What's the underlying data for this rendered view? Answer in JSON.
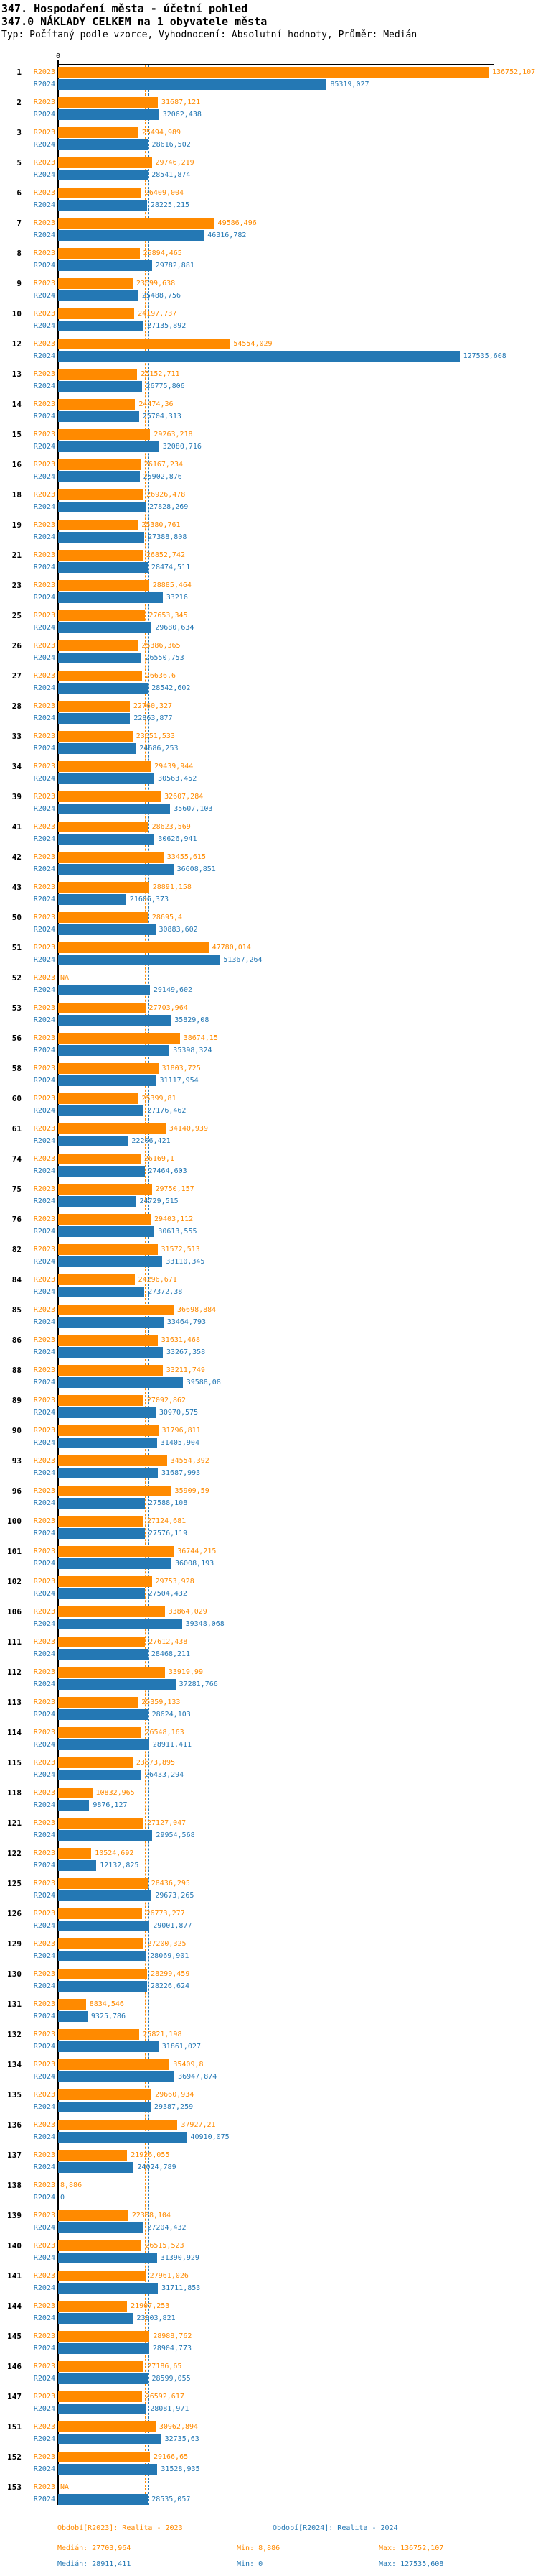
{
  "header": {
    "title_line1": "347. Hospodaření města - účetní pohled",
    "title_line2": "347.0 NÁKLADY CELKEM na 1 obyvatele města",
    "subtitle": "Typ: Počítaný podle vzorce, Vyhodnocení: Absolutní hodnoty, Průměr: Medián"
  },
  "chart_data": {
    "type": "bar",
    "orientation": "horizontal",
    "axis": {
      "zero_label": "0",
      "xlim": [
        0,
        140000
      ],
      "grid": false
    },
    "series_labels": [
      "R2023",
      "R2024"
    ],
    "colors": {
      "r2023": "#FF8A00",
      "r2024": "#2478B4"
    },
    "median_lines": {
      "r2023": 27703.964,
      "r2024": 28911.411
    },
    "na_label": "NA",
    "groups": [
      {
        "n": "1",
        "r2023": "136752,107",
        "r2024": "85319,027"
      },
      {
        "n": "2",
        "r2023": "31687,121",
        "r2024": "32062,438"
      },
      {
        "n": "3",
        "r2023": "25494,989",
        "r2024": "28616,502"
      },
      {
        "n": "5",
        "r2023": "29746,219",
        "r2024": "28541,874"
      },
      {
        "n": "6",
        "r2023": "26409,004",
        "r2024": "28225,215"
      },
      {
        "n": "7",
        "r2023": "49586,496",
        "r2024": "46316,782"
      },
      {
        "n": "8",
        "r2023": "25894,465",
        "r2024": "29782,881"
      },
      {
        "n": "9",
        "r2023": "23699,638",
        "r2024": "25488,756"
      },
      {
        "n": "10",
        "r2023": "24197,737",
        "r2024": "27135,892"
      },
      {
        "n": "12",
        "r2023": "54554,029",
        "r2024": "127535,608"
      },
      {
        "n": "13",
        "r2023": "25152,711",
        "r2024": "26775,806"
      },
      {
        "n": "14",
        "r2023": "24474,36",
        "r2024": "25704,313"
      },
      {
        "n": "15",
        "r2023": "29263,218",
        "r2024": "32080,716"
      },
      {
        "n": "16",
        "r2023": "26167,234",
        "r2024": "25902,876"
      },
      {
        "n": "18",
        "r2023": "26926,478",
        "r2024": "27828,269"
      },
      {
        "n": "19",
        "r2023": "25380,761",
        "r2024": "27388,808"
      },
      {
        "n": "21",
        "r2023": "26852,742",
        "r2024": "28474,511"
      },
      {
        "n": "23",
        "r2023": "28885,464",
        "r2024": "33216"
      },
      {
        "n": "25",
        "r2023": "27653,345",
        "r2024": "29680,634"
      },
      {
        "n": "26",
        "r2023": "25386,365",
        "r2024": "26550,753"
      },
      {
        "n": "27",
        "r2023": "26636,6",
        "r2024": "28542,602"
      },
      {
        "n": "28",
        "r2023": "22760,327",
        "r2024": "22863,877"
      },
      {
        "n": "33",
        "r2023": "23651,533",
        "r2024": "24686,253"
      },
      {
        "n": "34",
        "r2023": "29439,944",
        "r2024": "30563,452"
      },
      {
        "n": "39",
        "r2023": "32607,284",
        "r2024": "35607,103"
      },
      {
        "n": "41",
        "r2023": "28623,569",
        "r2024": "30626,941"
      },
      {
        "n": "42",
        "r2023": "33455,615",
        "r2024": "36608,851"
      },
      {
        "n": "43",
        "r2023": "28891,158",
        "r2024": "21606,373"
      },
      {
        "n": "50",
        "r2023": "28695,4",
        "r2024": "30883,602"
      },
      {
        "n": "51",
        "r2023": "47780,014",
        "r2024": "51367,264"
      },
      {
        "n": "52",
        "r2023": "NA",
        "r2024": "29149,602"
      },
      {
        "n": "53",
        "r2023": "27703,964",
        "r2024": "35829,08"
      },
      {
        "n": "56",
        "r2023": "38674,15",
        "r2024": "35398,324"
      },
      {
        "n": "58",
        "r2023": "31803,725",
        "r2024": "31117,954"
      },
      {
        "n": "60",
        "r2023": "25399,81",
        "r2024": "27176,462"
      },
      {
        "n": "61",
        "r2023": "34140,939",
        "r2024": "22206,421"
      },
      {
        "n": "74",
        "r2023": "26169,1",
        "r2024": "27464,603"
      },
      {
        "n": "75",
        "r2023": "29750,157",
        "r2024": "24729,515"
      },
      {
        "n": "76",
        "r2023": "29403,112",
        "r2024": "30613,555"
      },
      {
        "n": "82",
        "r2023": "31572,513",
        "r2024": "33110,345"
      },
      {
        "n": "84",
        "r2023": "24296,671",
        "r2024": "27372,38"
      },
      {
        "n": "85",
        "r2023": "36698,884",
        "r2024": "33464,793"
      },
      {
        "n": "86",
        "r2023": "31631,468",
        "r2024": "33267,358"
      },
      {
        "n": "88",
        "r2023": "33211,749",
        "r2024": "39588,08"
      },
      {
        "n": "89",
        "r2023": "27092,862",
        "r2024": "30970,575"
      },
      {
        "n": "90",
        "r2023": "31796,811",
        "r2024": "31405,904"
      },
      {
        "n": "93",
        "r2023": "34554,392",
        "r2024": "31687,993"
      },
      {
        "n": "96",
        "r2023": "35909,59",
        "r2024": "27588,108"
      },
      {
        "n": "100",
        "r2023": "27124,681",
        "r2024": "27576,119"
      },
      {
        "n": "101",
        "r2023": "36744,215",
        "r2024": "36008,193"
      },
      {
        "n": "102",
        "r2023": "29753,928",
        "r2024": "27504,432"
      },
      {
        "n": "106",
        "r2023": "33864,029",
        "r2024": "39348,068"
      },
      {
        "n": "111",
        "r2023": "27612,438",
        "r2024": "28468,211"
      },
      {
        "n": "112",
        "r2023": "33919,99",
        "r2024": "37281,766"
      },
      {
        "n": "113",
        "r2023": "25359,133",
        "r2024": "28624,103"
      },
      {
        "n": "114",
        "r2023": "26548,163",
        "r2024": "28911,411"
      },
      {
        "n": "115",
        "r2023": "23673,895",
        "r2024": "26433,294"
      },
      {
        "n": "118",
        "r2023": "10832,965",
        "r2024": "9876,127"
      },
      {
        "n": "121",
        "r2023": "27127,047",
        "r2024": "29954,568"
      },
      {
        "n": "122",
        "r2023": "10524,692",
        "r2024": "12132,825"
      },
      {
        "n": "125",
        "r2023": "28436,295",
        "r2024": "29673,265"
      },
      {
        "n": "126",
        "r2023": "26773,277",
        "r2024": "29001,877"
      },
      {
        "n": "129",
        "r2023": "27200,325",
        "r2024": "28069,901"
      },
      {
        "n": "130",
        "r2023": "28299,459",
        "r2024": "28226,624"
      },
      {
        "n": "131",
        "r2023": "8834,546",
        "r2024": "9325,786"
      },
      {
        "n": "132",
        "r2023": "25821,198",
        "r2024": "31861,027"
      },
      {
        "n": "134",
        "r2023": "35409,8",
        "r2024": "36947,874"
      },
      {
        "n": "135",
        "r2023": "29660,934",
        "r2024": "29387,259"
      },
      {
        "n": "136",
        "r2023": "37927,21",
        "r2024": "40910,075"
      },
      {
        "n": "137",
        "r2023": "21926,055",
        "r2024": "24024,789"
      },
      {
        "n": "138",
        "r2023": "8,886",
        "r2024": "0"
      },
      {
        "n": "139",
        "r2023": "22308,104",
        "r2024": "27204,432"
      },
      {
        "n": "140",
        "r2023": "26515,523",
        "r2024": "31390,929"
      },
      {
        "n": "141",
        "r2023": "27961,026",
        "r2024": "31711,853"
      },
      {
        "n": "144",
        "r2023": "21907,253",
        "r2024": "23803,821"
      },
      {
        "n": "145",
        "r2023": "28988,762",
        "r2024": "28904,773"
      },
      {
        "n": "146",
        "r2023": "27186,65",
        "r2024": "28599,055"
      },
      {
        "n": "147",
        "r2023": "26592,617",
        "r2024": "28081,971"
      },
      {
        "n": "151",
        "r2023": "30962,894",
        "r2024": "32735,63"
      },
      {
        "n": "152",
        "r2023": "29166,65",
        "r2024": "31528,935"
      },
      {
        "n": "153",
        "r2023": "NA",
        "r2024": "28535,057"
      }
    ]
  },
  "footer": {
    "legend_r2023": "Období[R2023]: Realita - 2023",
    "legend_r2024": "Období[R2024]: Realita - 2024",
    "stats_r2023": {
      "median": "Medián: 27703,964",
      "min": "Min: 8,886",
      "max": "Max: 136752,107"
    },
    "stats_r2024": {
      "median": "Medián: 28911,411",
      "min": "Min: 0",
      "max": "Max: 127535,608"
    }
  }
}
